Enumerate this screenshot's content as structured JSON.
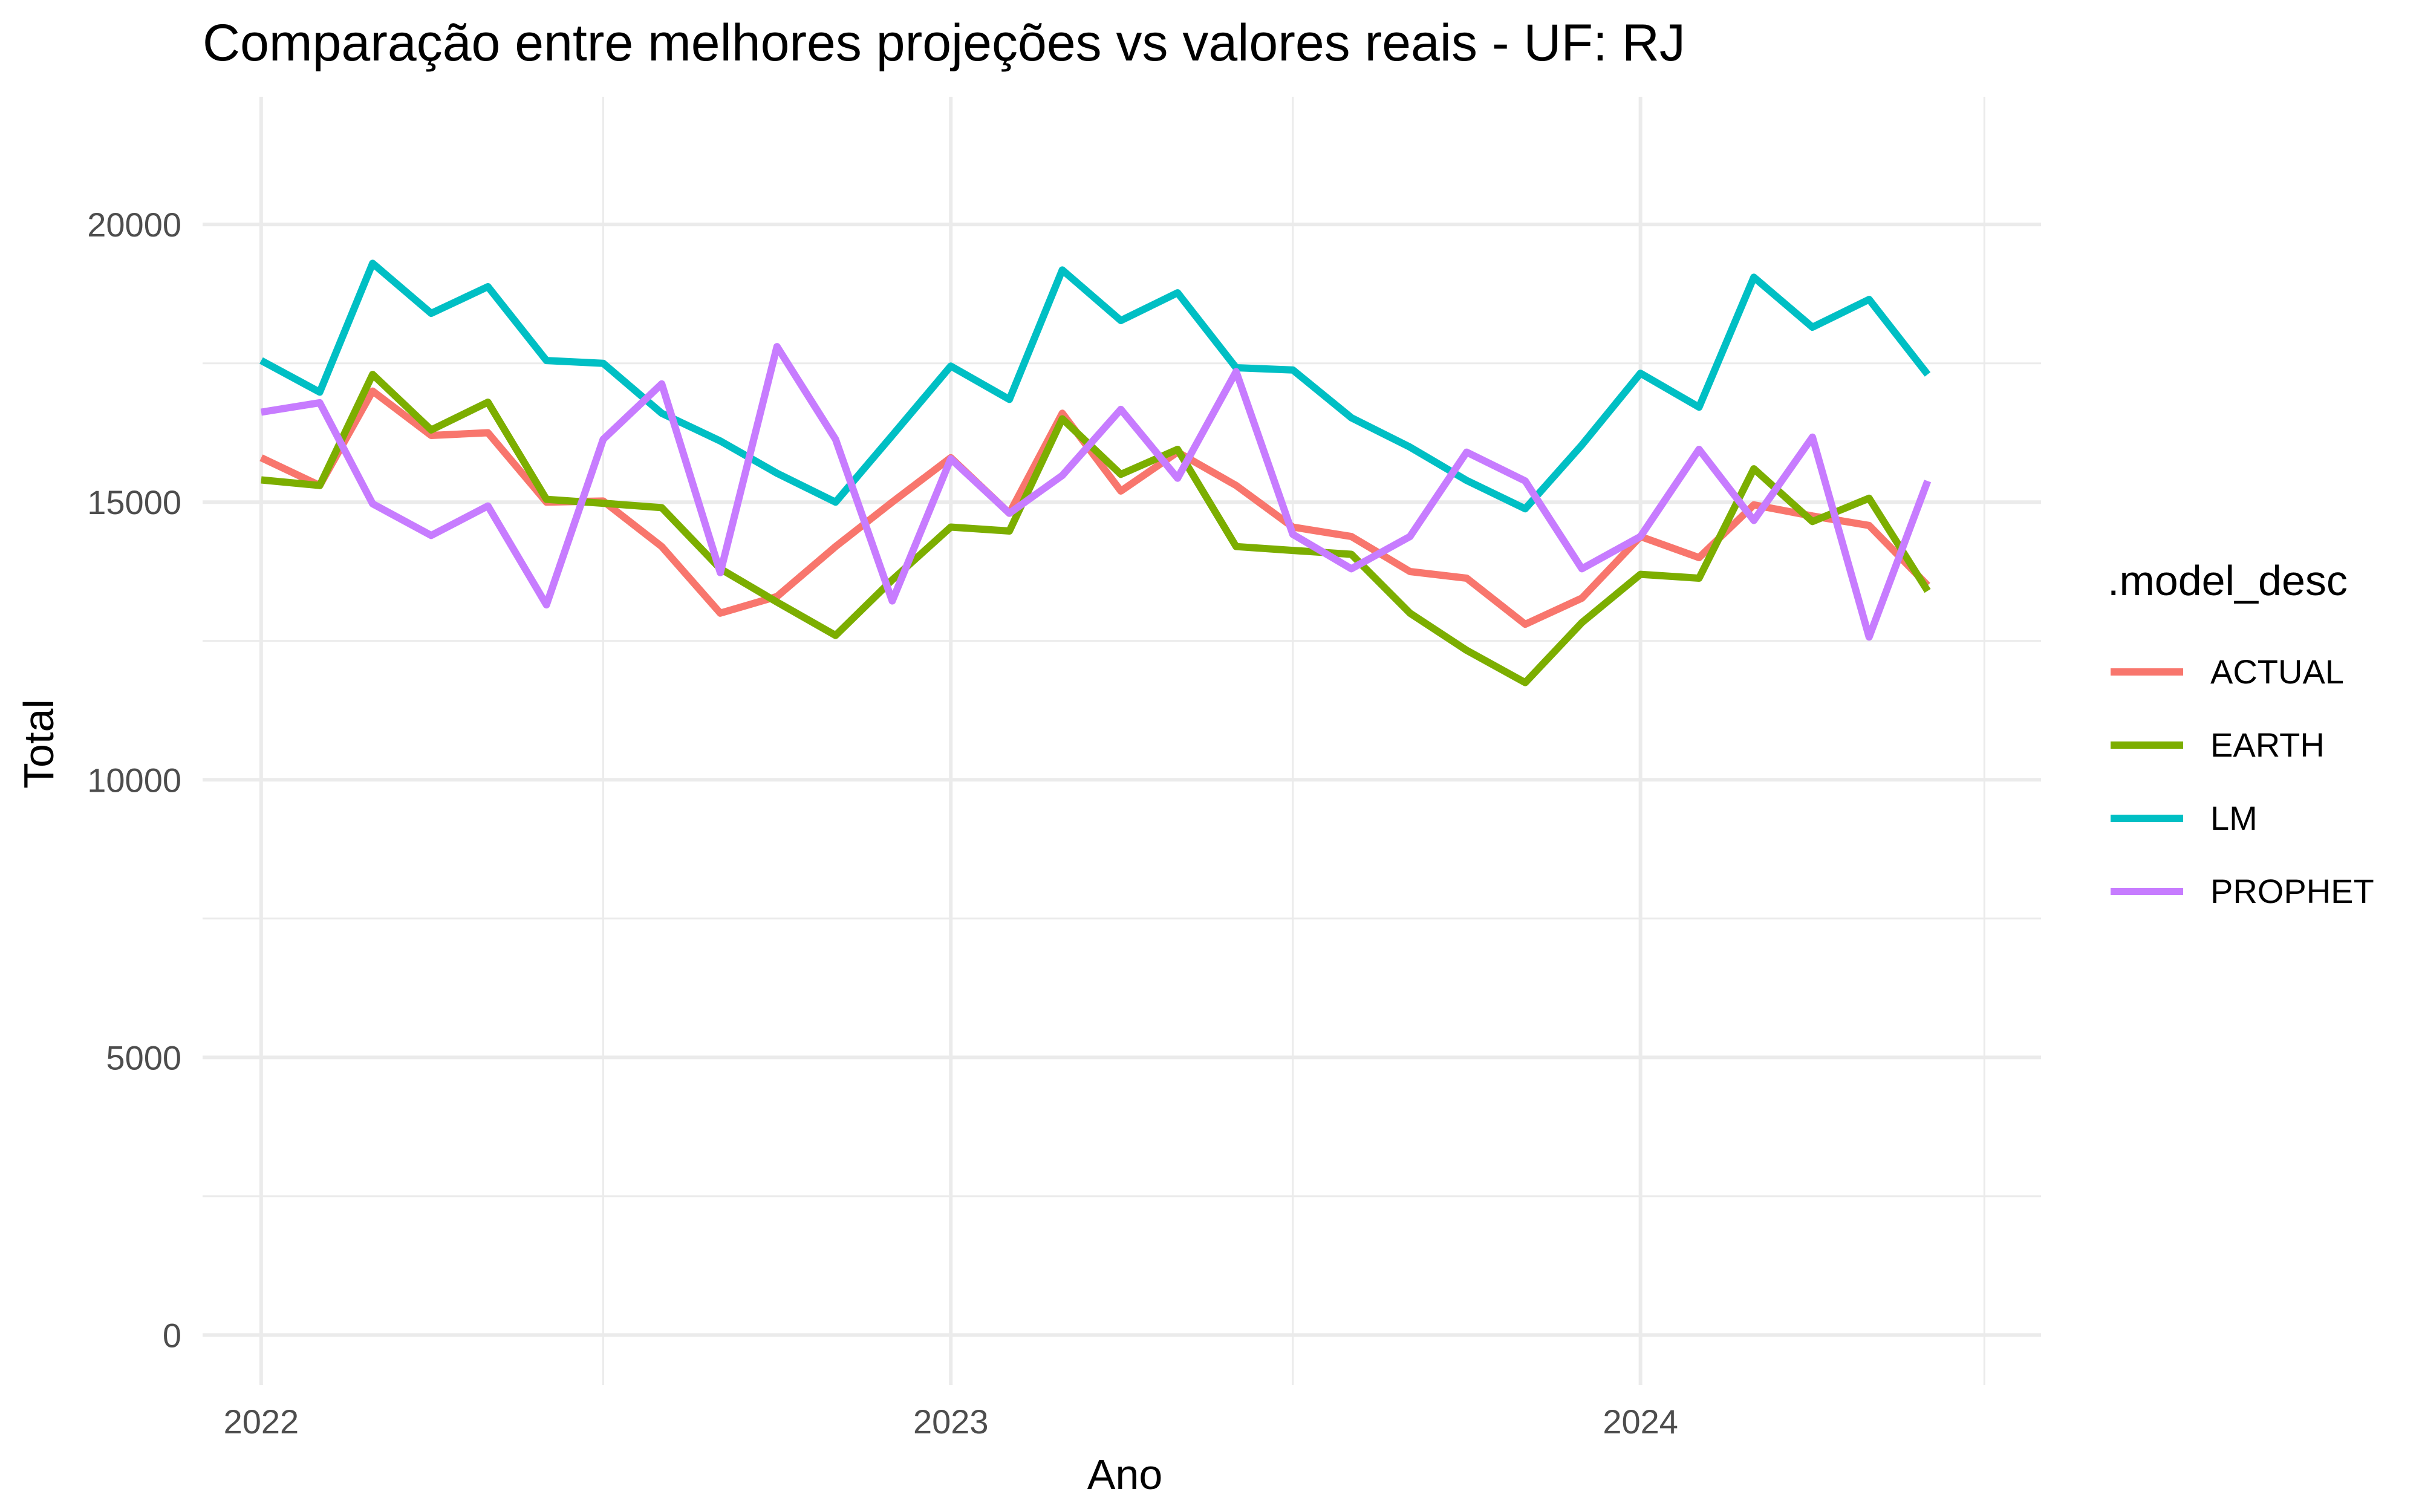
{
  "chart_data": {
    "type": "line",
    "title": "Comparação entre melhores projeções vs valores reais - UF: RJ",
    "xlabel": "Ano",
    "ylabel": "Total",
    "xlim": [
      "2021-12-01",
      "2024-07-31"
    ],
    "ylim": [
      -900,
      22300
    ],
    "x_ticks": [
      {
        "label": "2022",
        "date": "2022-01-01"
      },
      {
        "label": "2023",
        "date": "2023-01-01"
      },
      {
        "label": "2024",
        "date": "2024-01-01"
      }
    ],
    "x_minor_gridlines": [
      "2022-07-01",
      "2023-07-01",
      "2024-07-01"
    ],
    "y_ticks": [
      0,
      5000,
      10000,
      15000,
      20000
    ],
    "y_minor_gridlines": [
      2500,
      7500,
      12500,
      17500
    ],
    "grid": true,
    "legend": {
      "title": ".model_desc",
      "position": "right"
    },
    "x": [
      "2022-01-01",
      "2022-02-01",
      "2022-03-01",
      "2022-04-01",
      "2022-05-01",
      "2022-06-01",
      "2022-07-01",
      "2022-08-01",
      "2022-09-01",
      "2022-10-01",
      "2022-11-01",
      "2022-12-01",
      "2023-01-01",
      "2023-02-01",
      "2023-03-01",
      "2023-04-01",
      "2023-05-01",
      "2023-06-01",
      "2023-07-01",
      "2023-08-01",
      "2023-09-01",
      "2023-10-01",
      "2023-11-01",
      "2023-12-01",
      "2024-01-01",
      "2024-02-01",
      "2024-03-01",
      "2024-04-01",
      "2024-05-01",
      "2024-06-01"
    ],
    "series": [
      {
        "name": "ACTUAL",
        "color": "#F8766D",
        "values": [
          15800,
          15300,
          17000,
          16200,
          16250,
          15000,
          15020,
          14200,
          13000,
          13300,
          14200,
          15000,
          15800,
          14800,
          16600,
          15200,
          15900,
          15300,
          14550,
          14380,
          13750,
          13630,
          12800,
          13270,
          14380,
          14000,
          14950,
          14750,
          14580,
          13500
        ]
      },
      {
        "name": "EARTH",
        "color": "#7CAE00",
        "values": [
          15400,
          15300,
          17300,
          16300,
          16800,
          15050,
          14980,
          14900,
          13800,
          13200,
          12600,
          13600,
          14550,
          14480,
          16500,
          15500,
          15950,
          14200,
          14130,
          14060,
          13000,
          12330,
          11750,
          12830,
          13700,
          13630,
          15600,
          14650,
          15070,
          13400
        ]
      },
      {
        "name": "LM",
        "color": "#00BFC4",
        "values": [
          17550,
          16980,
          19300,
          18400,
          18880,
          17550,
          17500,
          16600,
          16100,
          15520,
          15000,
          16200,
          17450,
          16850,
          19180,
          18270,
          18770,
          17420,
          17380,
          16520,
          15990,
          15390,
          14880,
          16030,
          17320,
          16710,
          19050,
          18150,
          18650,
          17300
        ]
      },
      {
        "name": "PROPHET",
        "color": "#C77CFF",
        "values": [
          16620,
          16790,
          14970,
          14400,
          14930,
          13150,
          16130,
          17130,
          13730,
          17800,
          16130,
          13220,
          15780,
          14800,
          15480,
          16670,
          15430,
          17350,
          14420,
          13800,
          14380,
          15900,
          15380,
          13800,
          14380,
          15950,
          14670,
          16170,
          12570,
          15380
        ]
      }
    ]
  }
}
